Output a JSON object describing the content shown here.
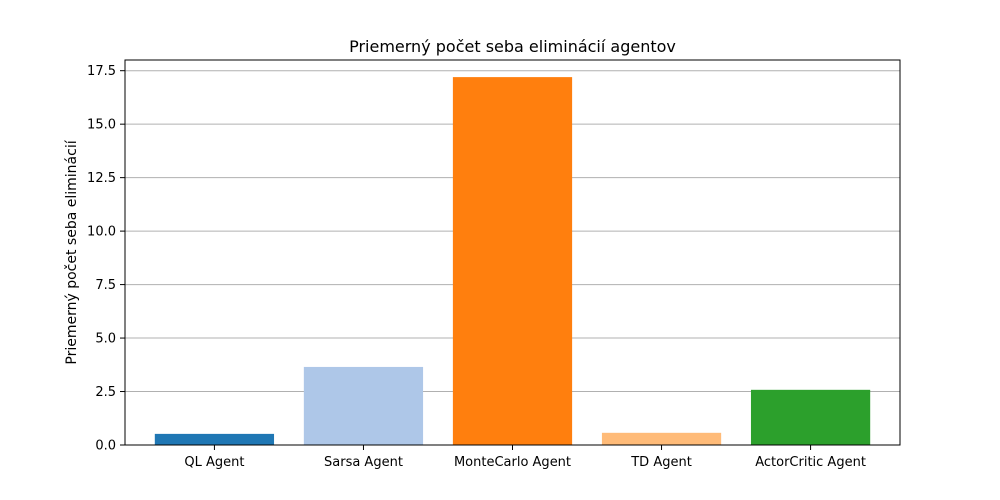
{
  "chart_data": {
    "type": "bar",
    "title": "Priemerný počet seba eliminácií agentov",
    "xlabel": "",
    "ylabel": "Priemerný počet seba eliminácií",
    "categories": [
      "QL Agent",
      "Sarsa Agent",
      "MonteCarlo Agent",
      "TD Agent",
      "ActorCritic Agent"
    ],
    "values": [
      0.52,
      3.65,
      17.2,
      0.57,
      2.58
    ],
    "colors": [
      "#1f77b4",
      "#aec7e8",
      "#ff7f0e",
      "#ffbb78",
      "#2ca02c"
    ],
    "ylim": [
      0,
      18
    ],
    "yticks": [
      0.0,
      2.5,
      5.0,
      7.5,
      10.0,
      12.5,
      15.0,
      17.5
    ],
    "ytick_labels": [
      "0.0",
      "2.5",
      "5.0",
      "7.5",
      "10.0",
      "12.5",
      "15.0",
      "17.5"
    ],
    "grid": "y"
  }
}
